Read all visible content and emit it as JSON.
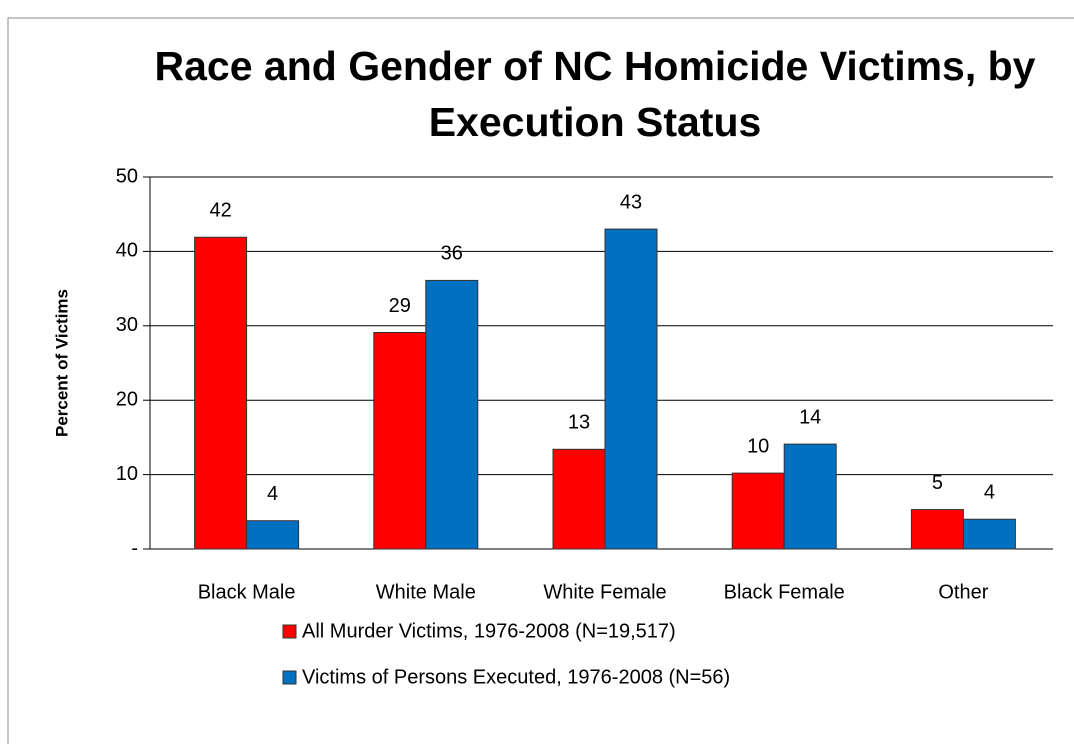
{
  "chart_data": {
    "type": "bar",
    "title": "Race and Gender of NC Homicide Victims, by Execution Status",
    "y_label": "Percent of Victims",
    "categories": [
      "Black Male",
      "White Male",
      "White Female",
      "Black Female",
      "Other"
    ],
    "series": [
      {
        "name": "All Murder Victims, 1976-2008 (N=19,517)",
        "color": "#ff0000",
        "values": [
          41.9,
          29.1,
          13.4,
          10.2,
          5.3
        ],
        "value_labels": [
          "42",
          "29",
          "13",
          "10",
          "5"
        ]
      },
      {
        "name": "Victims of Persons Executed, 1976-2008 (N=56)",
        "color": "#0070c0",
        "values": [
          3.8,
          36.1,
          43,
          14.1,
          4
        ],
        "value_labels": [
          "4",
          "36",
          "43",
          "14",
          "4"
        ]
      }
    ],
    "ylim": [
      0,
      50
    ],
    "yticks": [
      {
        "value": 0,
        "label": "-"
      },
      10,
      20,
      30,
      40,
      50
    ],
    "grid": true,
    "legend": "bottom"
  }
}
